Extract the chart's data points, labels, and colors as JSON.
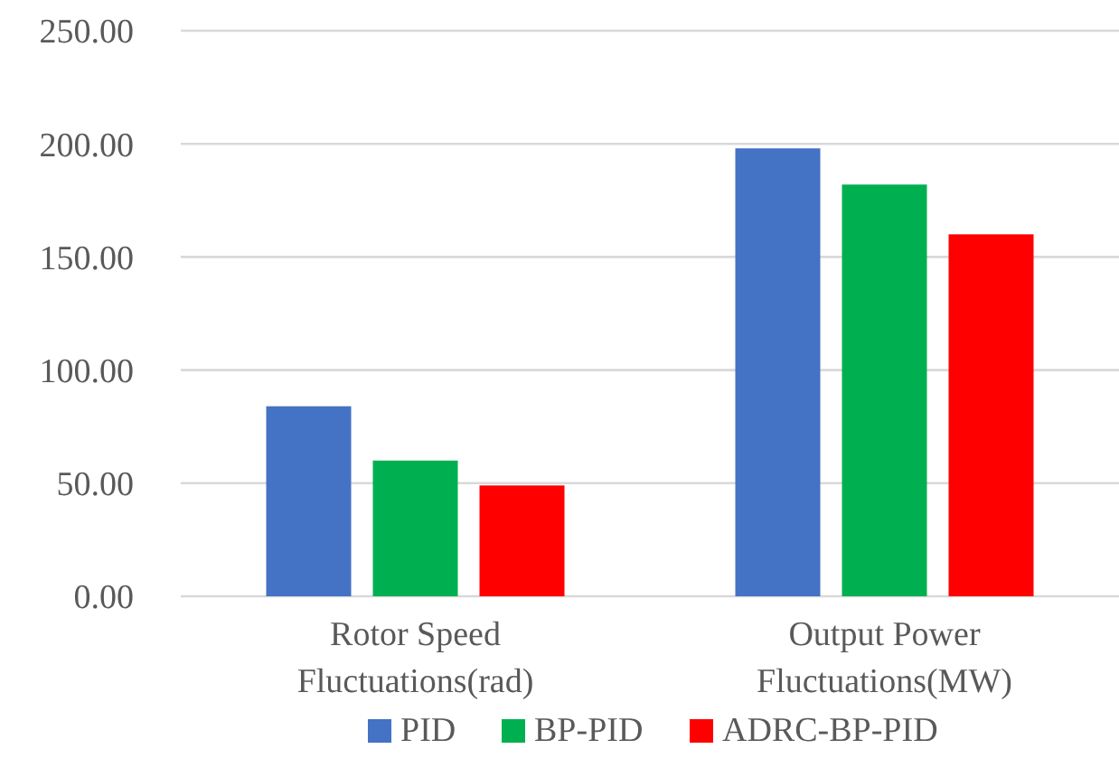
{
  "chart_data": {
    "type": "bar",
    "categories": [
      "Rotor Speed Fluctuations(rad)",
      "Output Power Fluctuations(MW)"
    ],
    "series": [
      {
        "name": "PID",
        "color": "#4472c4",
        "values": [
          84,
          198
        ]
      },
      {
        "name": "BP-PID",
        "color": "#00b050",
        "values": [
          60,
          182
        ]
      },
      {
        "name": "ADRC-BP-PID",
        "color": "#ff0000",
        "values": [
          49,
          160
        ]
      }
    ],
    "ylim": [
      0,
      250
    ],
    "yticks": [
      {
        "value": 0,
        "label": "0.00"
      },
      {
        "value": 50,
        "label": "50.00"
      },
      {
        "value": 100,
        "label": "100.00"
      },
      {
        "value": 150,
        "label": "150.00"
      },
      {
        "value": 200,
        "label": "200.00"
      },
      {
        "value": 250,
        "label": "250.00"
      }
    ],
    "grid": "y",
    "legend": "bottom"
  }
}
